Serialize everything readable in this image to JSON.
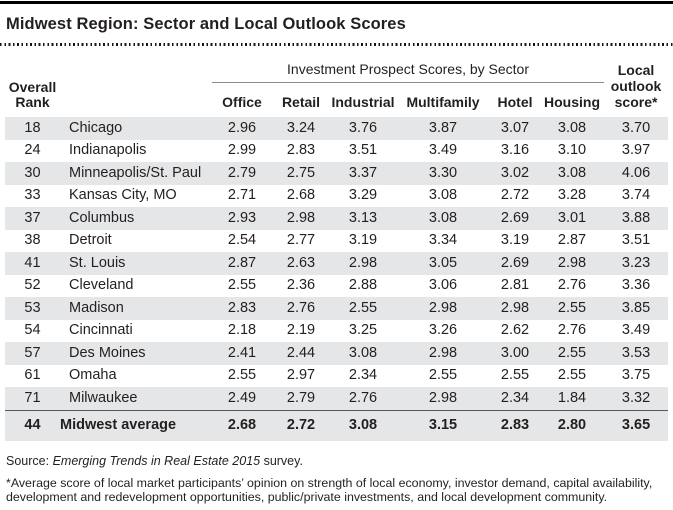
{
  "title": "Midwest Region: Sector and Local Outlook Scores",
  "table": {
    "rank_header": "Overall\nRank",
    "group_header": "Investment Prospect Scores, by Sector",
    "local_header": "Local\noutlook\nscore*",
    "sector_headers": [
      "Office",
      "Retail",
      "Industrial",
      "Multifamily",
      "Hotel",
      "Housing"
    ],
    "rows": [
      {
        "rank": "18",
        "city": "Chicago",
        "scores": [
          "2.96",
          "3.24",
          "3.76",
          "3.87",
          "3.07",
          "3.08"
        ],
        "local": "3.70"
      },
      {
        "rank": "24",
        "city": "Indianapolis",
        "scores": [
          "2.99",
          "2.83",
          "3.51",
          "3.49",
          "3.16",
          "3.10"
        ],
        "local": "3.97"
      },
      {
        "rank": "30",
        "city": "Minneapolis/St. Paul",
        "scores": [
          "2.79",
          "2.75",
          "3.37",
          "3.30",
          "3.02",
          "3.08"
        ],
        "local": "4.06"
      },
      {
        "rank": "33",
        "city": "Kansas City, MO",
        "scores": [
          "2.71",
          "2.68",
          "3.29",
          "3.08",
          "2.72",
          "3.28"
        ],
        "local": "3.74"
      },
      {
        "rank": "37",
        "city": "Columbus",
        "scores": [
          "2.93",
          "2.98",
          "3.13",
          "3.08",
          "2.69",
          "3.01"
        ],
        "local": "3.88"
      },
      {
        "rank": "38",
        "city": "Detroit",
        "scores": [
          "2.54",
          "2.77",
          "3.19",
          "3.34",
          "3.19",
          "2.87"
        ],
        "local": "3.51"
      },
      {
        "rank": "41",
        "city": "St. Louis",
        "scores": [
          "2.87",
          "2.63",
          "2.98",
          "3.05",
          "2.69",
          "2.98"
        ],
        "local": "3.23"
      },
      {
        "rank": "52",
        "city": "Cleveland",
        "scores": [
          "2.55",
          "2.36",
          "2.88",
          "3.06",
          "2.81",
          "2.76"
        ],
        "local": "3.36"
      },
      {
        "rank": "53",
        "city": "Madison",
        "scores": [
          "2.83",
          "2.76",
          "2.55",
          "2.98",
          "2.98",
          "2.55"
        ],
        "local": "3.85"
      },
      {
        "rank": "54",
        "city": "Cincinnati",
        "scores": [
          "2.18",
          "2.19",
          "3.25",
          "3.26",
          "2.62",
          "2.76"
        ],
        "local": "3.49"
      },
      {
        "rank": "57",
        "city": "Des Moines",
        "scores": [
          "2.41",
          "2.44",
          "3.08",
          "2.98",
          "3.00",
          "2.55"
        ],
        "local": "3.53"
      },
      {
        "rank": "61",
        "city": "Omaha",
        "scores": [
          "2.55",
          "2.97",
          "2.34",
          "2.55",
          "2.55",
          "2.55"
        ],
        "local": "3.75"
      },
      {
        "rank": "71",
        "city": "Milwaukee",
        "scores": [
          "2.49",
          "2.79",
          "2.76",
          "2.98",
          "2.34",
          "1.84"
        ],
        "local": "3.32"
      }
    ],
    "average_row": {
      "rank": "44",
      "city": "Midwest average",
      "scores": [
        "2.68",
        "2.72",
        "3.08",
        "3.15",
        "2.83",
        "2.80"
      ],
      "local": "3.65"
    }
  },
  "footer": {
    "source_prefix": "Source: ",
    "source_italic": "Emerging Trends in Real Estate 2015",
    "source_suffix": " survey.",
    "footnote": "*Average score of local market participants’ opinion on strength of local economy, investor demand, capital availability,\ndevelopment and redevelopment opportunities, public/private investments, and local development community."
  },
  "colors": {
    "text": "#231f20",
    "row-band": "#e5e6e7",
    "rule-dark": "#000000",
    "rule-gray": "#8c8c8c",
    "avg-rule": "#55565a"
  }
}
